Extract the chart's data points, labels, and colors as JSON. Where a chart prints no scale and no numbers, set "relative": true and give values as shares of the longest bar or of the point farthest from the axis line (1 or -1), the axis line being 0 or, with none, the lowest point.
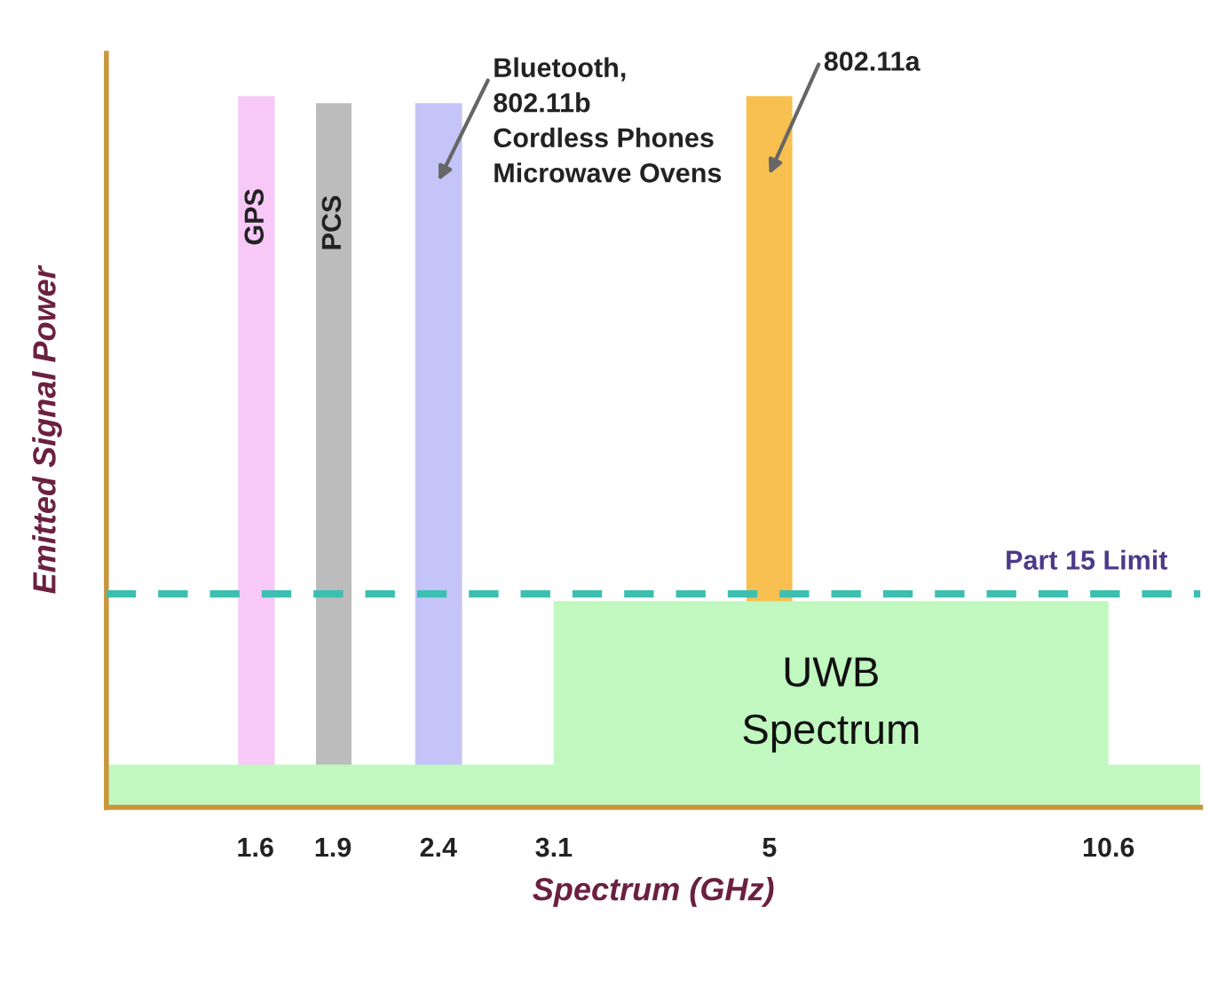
{
  "chart_data": {
    "type": "area",
    "relative": true,
    "log": "x",
    "xlabel": "Spectrum (GHz)",
    "ylabel": "Emitted Signal Power",
    "xlim": [
      1.15,
      13
    ],
    "xticks": [
      1.6,
      1.9,
      2.4,
      3.1,
      5,
      10.6
    ],
    "tick_labels": "x",
    "grid": false,
    "series": [
      {
        "name": "GPS",
        "color": "#f8c8f8",
        "x": [
          1.54,
          1.67
        ],
        "values": [
          1.0,
          1.0
        ]
      },
      {
        "name": "PCS",
        "color": "#bcbcbc",
        "x": [
          1.83,
          1.98
        ],
        "values": [
          0.99,
          0.99
        ]
      },
      {
        "color": "#c4c4f8",
        "x": [
          2.28,
          2.53
        ],
        "values": [
          0.99,
          0.99
        ]
      },
      {
        "color": "#f8c050",
        "x": [
          4.75,
          5.26
        ],
        "values": [
          1.0,
          1.0
        ]
      },
      {
        "name": "UWB\nSpectrum",
        "color": "#c0f8c0",
        "x": [
          1.15,
          3.1,
          3.1,
          10.6,
          10.6,
          13
        ],
        "values": [
          0.06,
          0.06,
          0.29,
          0.29,
          0.06,
          0.06
        ]
      }
    ],
    "ref_lines": [
      {
        "axis": "y",
        "value": 0.3,
        "label": "Part 15 Limit",
        "color": "#3cbfb0",
        "line_style": "dashed"
      }
    ],
    "annotations": [
      "Bluetooth,\n802.11b\nCordless Phones\nMicrowave Ovens",
      "802.11a"
    ]
  }
}
